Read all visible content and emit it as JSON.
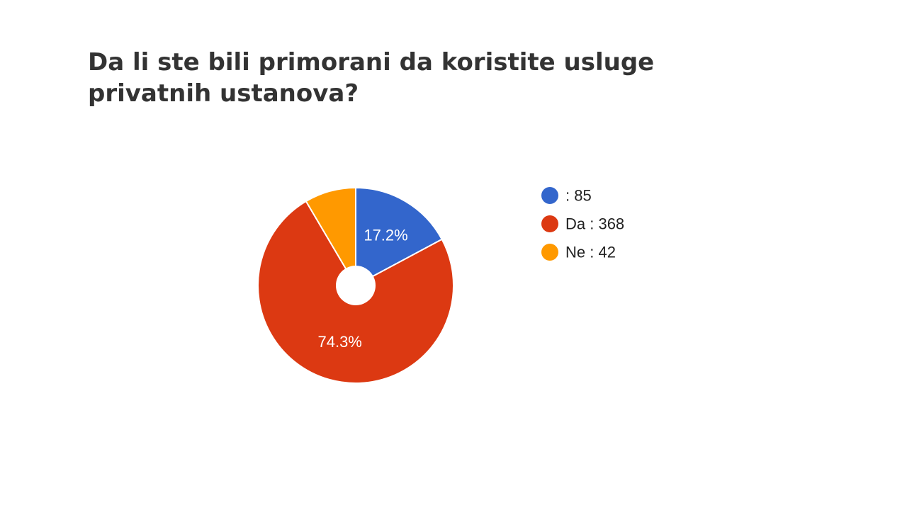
{
  "slide": {
    "title": "Da li ste bili primorani da koristite usluge privatnih ustanova?"
  },
  "chart_data": {
    "type": "pie",
    "title": "Da li ste bili primorani da koristite usluge privatnih ustanova?",
    "donut_hole": true,
    "legend_position": "right",
    "slices": [
      {
        "label": "",
        "value": 85,
        "percent_label": "17.2%",
        "legend_text": ": 85",
        "color": "#3366cc"
      },
      {
        "label": "Da",
        "value": 368,
        "percent_label": "74.3%",
        "legend_text": "Da : 368",
        "color": "#dc3912"
      },
      {
        "label": "Ne",
        "value": 42,
        "percent_label": "",
        "legend_text": "Ne : 42",
        "color": "#ff9900"
      }
    ]
  }
}
